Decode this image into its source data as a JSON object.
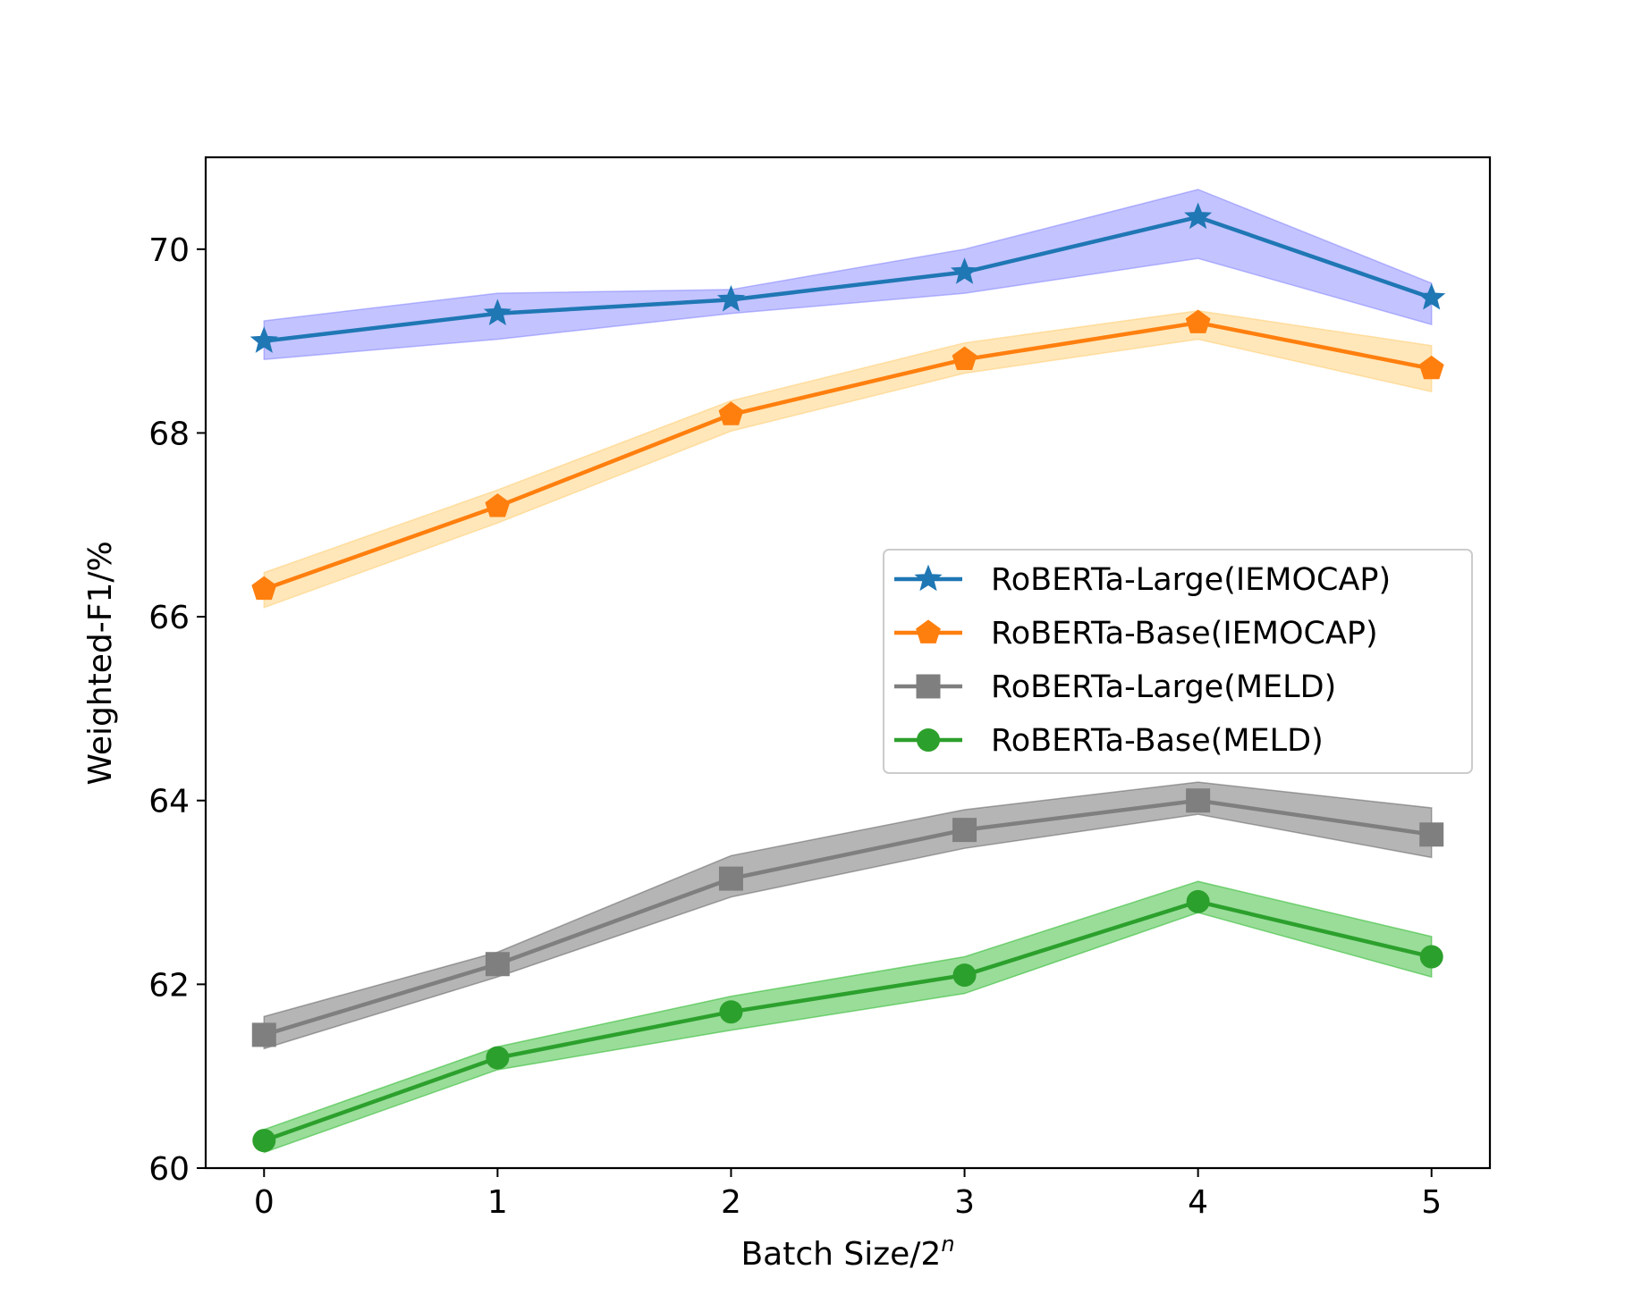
{
  "chart_data": {
    "type": "line",
    "title": "",
    "xlabel": "Batch Size/2",
    "xlabel_superscript": "n",
    "ylabel": "Weighted-F1/%",
    "x": [
      0,
      1,
      2,
      3,
      4,
      5
    ],
    "xlim": [
      -0.25,
      5.25
    ],
    "ylim": [
      60,
      71
    ],
    "xticks": [
      "0",
      "1",
      "2",
      "3",
      "4",
      "5"
    ],
    "yticks": [
      "60",
      "62",
      "64",
      "66",
      "68",
      "70"
    ],
    "grid": false,
    "legend_position": "center-right",
    "series": [
      {
        "name": "RoBERTa-Large(IEMOCAP)",
        "color": "#1f77b4",
        "band_color": "#7b7bff",
        "marker": "star",
        "values": [
          69.0,
          69.3,
          69.45,
          69.75,
          70.35,
          69.47
        ],
        "lower": [
          68.8,
          69.02,
          69.3,
          69.52,
          69.9,
          69.18
        ],
        "upper": [
          69.22,
          69.52,
          69.56,
          70.0,
          70.65,
          69.63
        ]
      },
      {
        "name": "RoBERTa-Base(IEMOCAP)",
        "color": "#ff7f0e",
        "band_color": "#ffc966",
        "marker": "pentagon",
        "values": [
          66.3,
          67.2,
          68.2,
          68.8,
          69.2,
          68.7
        ],
        "lower": [
          66.1,
          67.02,
          68.02,
          68.65,
          69.02,
          68.45
        ],
        "upper": [
          66.48,
          67.38,
          68.35,
          68.98,
          69.33,
          68.95
        ]
      },
      {
        "name": "RoBERTa-Large(MELD)",
        "color": "#7f7f7f",
        "band_color": "#5a5a5a",
        "marker": "square",
        "values": [
          61.45,
          62.22,
          63.15,
          63.68,
          64.0,
          63.63
        ],
        "lower": [
          61.3,
          62.08,
          62.95,
          63.48,
          63.85,
          63.38
        ],
        "upper": [
          61.65,
          62.35,
          63.4,
          63.9,
          64.2,
          63.92
        ]
      },
      {
        "name": "RoBERTa-Base(MELD)",
        "color": "#2ca02c",
        "band_color": "#1db41d",
        "marker": "circle",
        "values": [
          60.3,
          61.2,
          61.7,
          62.1,
          62.9,
          62.3
        ],
        "lower": [
          60.17,
          61.07,
          61.5,
          61.9,
          62.78,
          62.08
        ],
        "upper": [
          60.42,
          61.32,
          61.87,
          62.3,
          63.12,
          62.52
        ]
      }
    ]
  }
}
